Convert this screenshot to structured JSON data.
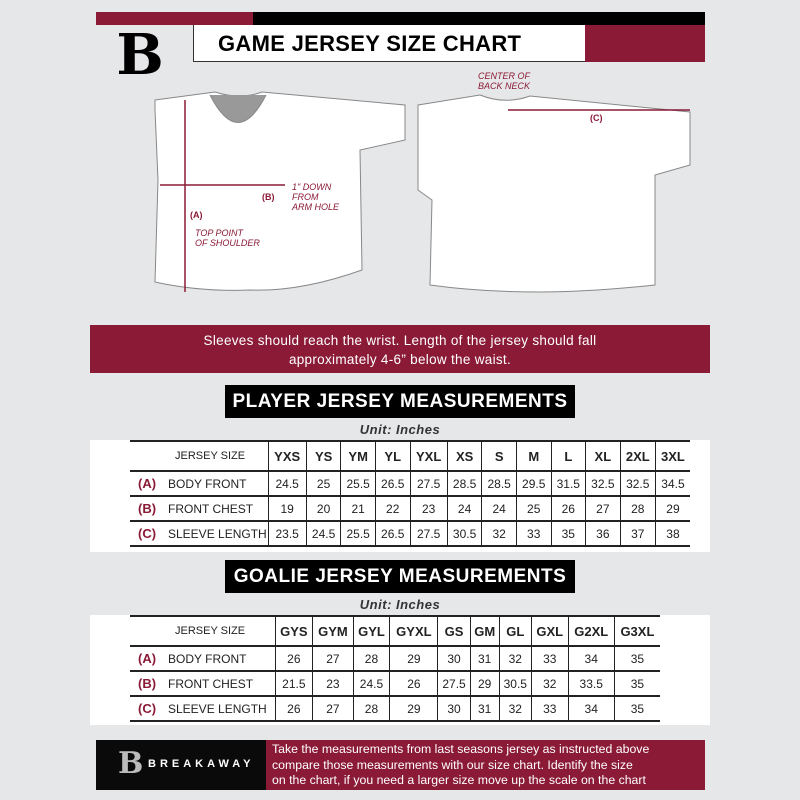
{
  "header": {
    "title": "GAME JERSEY SIZE CHART",
    "logo_text": "B"
  },
  "diagram": {
    "label_a": "(A)",
    "label_a_note": [
      "TOP POINT",
      "OF SHOULDER"
    ],
    "label_b": "(B)",
    "label_b_note": [
      "1\" DOWN",
      "FROM",
      "ARM HOLE"
    ],
    "label_c": "(C)",
    "label_c_note": [
      "CENTER OF",
      "BACK NECK"
    ]
  },
  "banner": {
    "lines": [
      "Sleeves should reach the wrist. Length of the jersey should fall",
      "approximately 4-6” below the waist."
    ]
  },
  "player": {
    "title": "PLAYER JERSEY MEASUREMENTS",
    "unit": "Unit: Inches",
    "size_label": "JERSEY SIZE",
    "sizes": [
      "YXS",
      "YS",
      "YM",
      "YL",
      "YXL",
      "XS",
      "S",
      "M",
      "L",
      "XL",
      "2XL",
      "3XL"
    ],
    "rows": [
      {
        "tag": "(A)",
        "label": "BODY FRONT",
        "values": [
          "24.5",
          "25",
          "25.5",
          "26.5",
          "27.5",
          "28.5",
          "28.5",
          "29.5",
          "31.5",
          "32.5",
          "32.5",
          "34.5"
        ]
      },
      {
        "tag": "(B)",
        "label": "FRONT CHEST",
        "values": [
          "19",
          "20",
          "21",
          "22",
          "23",
          "24",
          "24",
          "25",
          "26",
          "27",
          "28",
          "29"
        ]
      },
      {
        "tag": "(C)",
        "label": "SLEEVE LENGTH",
        "values": [
          "23.5",
          "24.5",
          "25.5",
          "26.5",
          "27.5",
          "30.5",
          "32",
          "33",
          "35",
          "36",
          "37",
          "38"
        ]
      }
    ]
  },
  "goalie": {
    "title": "GOALIE JERSEY MEASUREMENTS",
    "unit": "Unit: Inches",
    "size_label": "JERSEY SIZE",
    "sizes": [
      "GYS",
      "GYM",
      "GYL",
      "GYXL",
      "GS",
      "GM",
      "GL",
      "GXL",
      "G2XL",
      "G3XL"
    ],
    "rows": [
      {
        "tag": "(A)",
        "label": "BODY FRONT",
        "values": [
          "26",
          "27",
          "28",
          "29",
          "30",
          "31",
          "32",
          "33",
          "34",
          "35"
        ]
      },
      {
        "tag": "(B)",
        "label": "FRONT CHEST",
        "values": [
          "21.5",
          "23",
          "24.5",
          "26",
          "27.5",
          "29",
          "30.5",
          "32",
          "33.5",
          "35"
        ]
      },
      {
        "tag": "(C)",
        "label": "SLEEVE LENGTH",
        "values": [
          "26",
          "27",
          "28",
          "29",
          "30",
          "31",
          "32",
          "33",
          "34",
          "35"
        ]
      }
    ]
  },
  "footer": {
    "brand": "BREAKAWAY",
    "logo_text": "B",
    "lines": [
      "Take the measurements from last seasons jersey as instructed above",
      "compare those measurements  with our size chart. Identify the size",
      "on the chart, if you need a larger size move up the scale on the chart"
    ]
  },
  "colors": {
    "accent": "#8a1a36",
    "background": "#e6e7e8"
  }
}
